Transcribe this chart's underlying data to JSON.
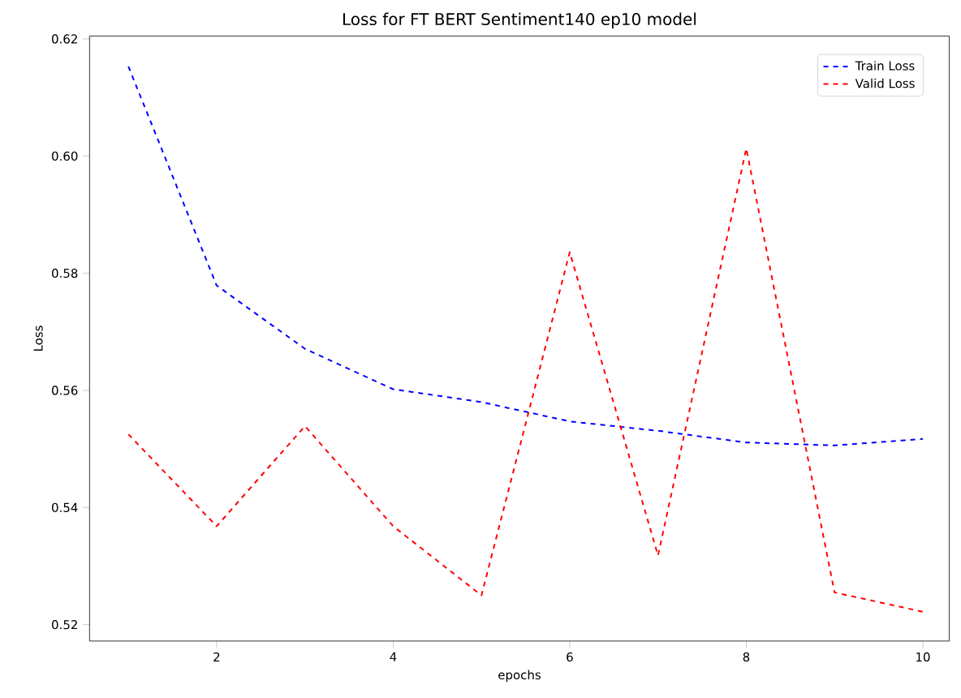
{
  "chart_data": {
    "type": "line",
    "title": "Loss for FT BERT Sentiment140 ep10 model",
    "xlabel": "epochs",
    "ylabel": "Loss",
    "x": [
      1,
      2,
      3,
      4,
      5,
      6,
      7,
      8,
      9,
      10
    ],
    "series": [
      {
        "name": "Train Loss",
        "color": "#0000ff",
        "values": [
          0.6153,
          0.5779,
          0.5671,
          0.5602,
          0.558,
          0.5547,
          0.5531,
          0.5511,
          0.5506,
          0.5517
        ]
      },
      {
        "name": "Valid Loss",
        "color": "#ff0000",
        "values": [
          0.5525,
          0.5368,
          0.5539,
          0.5368,
          0.525,
          0.5836,
          0.5318,
          0.6013,
          0.5255,
          0.5222
        ]
      }
    ],
    "xlim": [
      0.56,
      10.3
    ],
    "ylim": [
      0.5172,
      0.6205
    ],
    "xticks": [
      2,
      4,
      6,
      8,
      10
    ],
    "yticks": [
      0.52,
      0.54,
      0.56,
      0.58,
      {
        "value": 0.6,
        "label": "0.60"
      },
      0.62
    ],
    "line_style": "dashed",
    "marker": "none",
    "grid": false,
    "legend": "top right"
  }
}
